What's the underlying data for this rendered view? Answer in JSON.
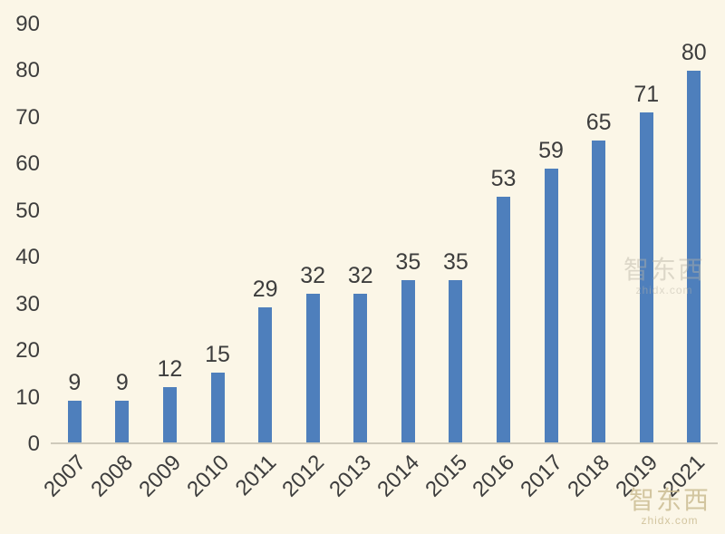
{
  "chart_data": {
    "type": "bar",
    "categories": [
      "2007",
      "2008",
      "2009",
      "2010",
      "2011",
      "2012",
      "2013",
      "2014",
      "2015",
      "2016",
      "2017",
      "2018",
      "2019",
      "2021"
    ],
    "values": [
      9,
      9,
      12,
      15,
      29,
      32,
      32,
      35,
      35,
      53,
      59,
      65,
      71,
      80
    ],
    "data_labels": [
      9,
      9,
      12,
      15,
      29,
      32,
      32,
      35,
      35,
      53,
      59,
      65,
      71,
      80
    ],
    "title": "",
    "xlabel": "",
    "ylabel": "",
    "ylim": [
      0,
      90
    ],
    "yticks": [
      0,
      10,
      20,
      30,
      40,
      50,
      60,
      70,
      80,
      90
    ],
    "grid": false,
    "legend": "none",
    "bar_color": "#4e7fbc",
    "background_color": "#fbf6e7",
    "text_color": "#3d3d3d"
  },
  "watermark": {
    "line1": "智东西",
    "line2": "zhidx.com"
  }
}
